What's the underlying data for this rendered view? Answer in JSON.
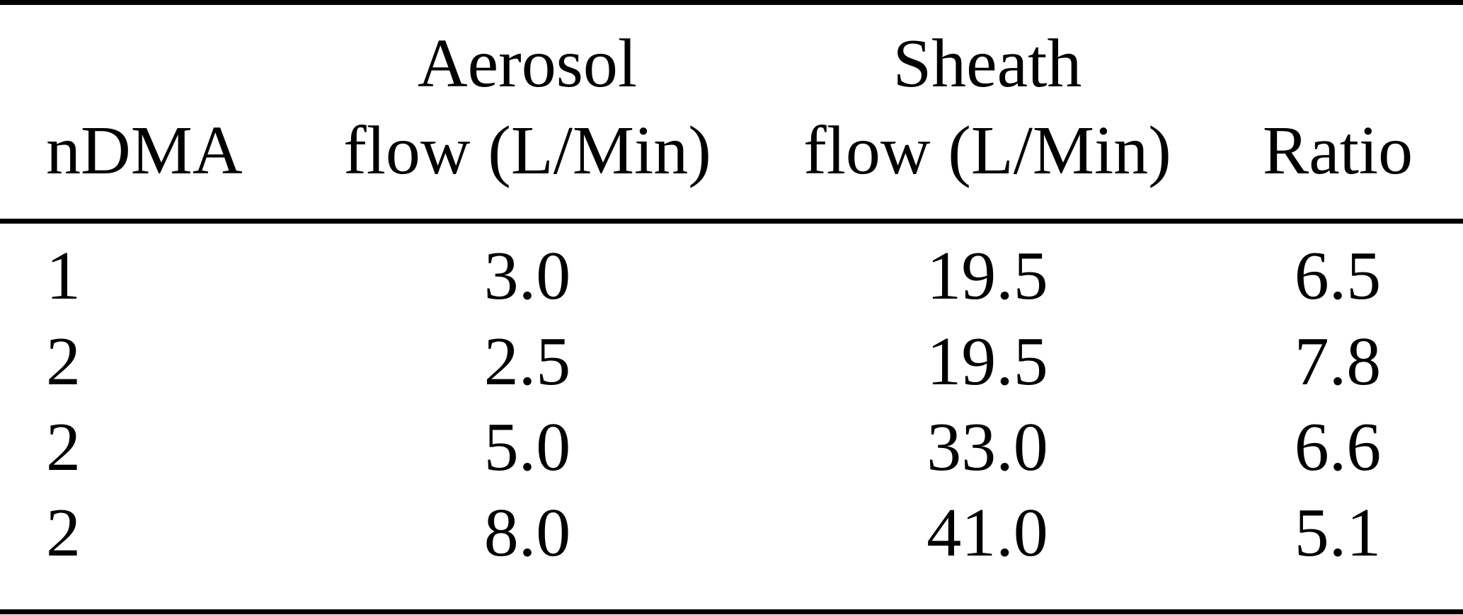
{
  "table": {
    "columns": [
      {
        "id": "ndma",
        "lines": [
          "nDMA"
        ]
      },
      {
        "id": "aerosol-flow",
        "lines": [
          "Aerosol",
          "flow (L/Min)"
        ]
      },
      {
        "id": "sheath-flow",
        "lines": [
          "Sheath",
          "flow (L/Min)"
        ]
      },
      {
        "id": "ratio",
        "lines": [
          "Ratio"
        ]
      }
    ],
    "rows": [
      [
        "1",
        "3.0",
        "19.5",
        "6.5"
      ],
      [
        "2",
        "2.5",
        "19.5",
        "7.8"
      ],
      [
        "2",
        "5.0",
        "33.0",
        "6.6"
      ],
      [
        "2",
        "8.0",
        "41.0",
        "5.1"
      ]
    ]
  },
  "colors": {
    "background": "#ffffff",
    "text": "#000000",
    "rule": "#000000"
  }
}
